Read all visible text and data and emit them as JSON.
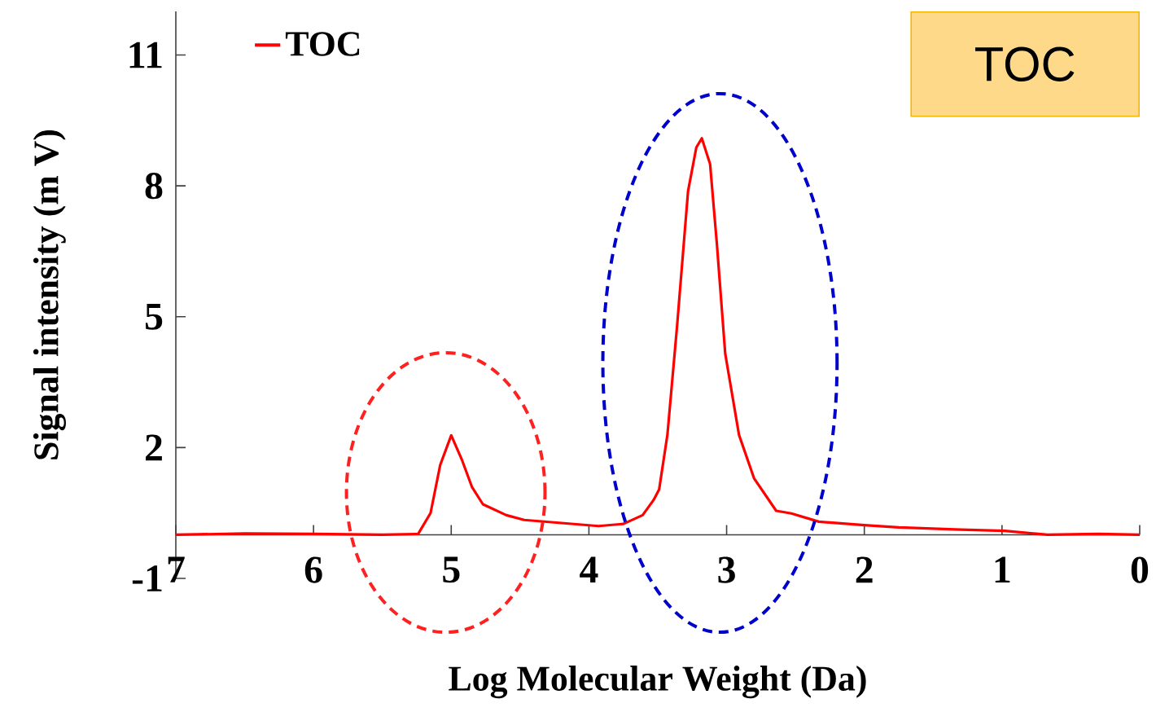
{
  "chart_data": {
    "type": "line",
    "xlabel": "Log Molecular Weight (Da)",
    "ylabel": "Signal intensity (m V)",
    "annotations": [
      "TOC"
    ],
    "x": [
      7,
      6.5,
      6,
      5.5,
      5.24,
      5.15,
      5.08,
      5.0,
      4.92,
      4.85,
      4.77,
      4.6,
      4.47,
      4.2,
      3.93,
      3.75,
      3.61,
      3.53,
      3.49,
      3.43,
      3.36,
      3.28,
      3.22,
      3.18,
      3.12,
      3.07,
      3.01,
      2.91,
      2.8,
      2.64,
      2.53,
      2.33,
      2.0,
      1.75,
      1.3,
      0.98,
      0.67,
      0.3,
      0
    ],
    "series": [
      {
        "name": "TOC",
        "color": "#ff0000",
        "values": [
          0.0,
          0.03,
          0.02,
          0.0,
          0.02,
          0.5,
          1.6,
          2.28,
          1.7,
          1.1,
          0.7,
          0.45,
          0.34,
          0.27,
          0.2,
          0.25,
          0.45,
          0.8,
          1.04,
          2.29,
          4.78,
          7.88,
          8.88,
          9.09,
          8.5,
          6.64,
          4.15,
          2.29,
          1.29,
          0.55,
          0.49,
          0.3,
          0.22,
          0.17,
          0.12,
          0.09,
          0.0,
          0.02,
          0.0
        ]
      }
    ],
    "xlim": [
      7,
      0
    ],
    "ylim": [
      -1,
      12
    ],
    "xticks": [
      7,
      6,
      5,
      4,
      3,
      2,
      1,
      0
    ],
    "yticks": [
      -1,
      2,
      5,
      8,
      11
    ],
    "legend": "top left",
    "marker": "none",
    "line_style": "solid"
  }
}
